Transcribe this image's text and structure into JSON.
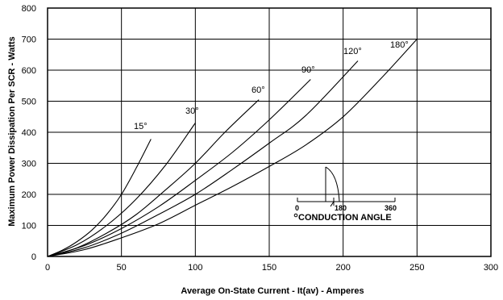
{
  "chart_data": {
    "type": "line",
    "title": "",
    "xlabel": "Average On-State Current - It(av) - Amperes",
    "ylabel": "Maximum Power Dissipation Per SCR - Watts",
    "xlim": [
      0,
      300
    ],
    "ylim": [
      0,
      800
    ],
    "x_ticks": [
      "0",
      "50",
      "100",
      "150",
      "200",
      "250",
      "300"
    ],
    "y_ticks": [
      "0",
      "100",
      "200",
      "300",
      "400",
      "500",
      "600",
      "700",
      "800"
    ],
    "grid": true,
    "series": [
      {
        "name": "15°",
        "x": [
          0,
          10,
          20,
          30,
          40,
          50,
          60,
          70
        ],
        "y": [
          0,
          20,
          48,
          85,
          135,
          200,
          285,
          378
        ]
      },
      {
        "name": "30°",
        "x": [
          0,
          20,
          40,
          60,
          80,
          100
        ],
        "y": [
          0,
          38,
          100,
          185,
          295,
          430
        ]
      },
      {
        "name": "60°",
        "x": [
          0,
          20,
          40,
          60,
          80,
          100,
          120,
          143
        ],
        "y": [
          0,
          28,
          75,
          135,
          215,
          300,
          400,
          505
        ]
      },
      {
        "name": "90°",
        "x": [
          0,
          25,
          50,
          75,
          100,
          125,
          150,
          178
        ],
        "y": [
          0,
          35,
          90,
          160,
          245,
          335,
          440,
          570
        ]
      },
      {
        "name": "120°",
        "x": [
          0,
          25,
          50,
          75,
          100,
          125,
          150,
          175,
          210
        ],
        "y": [
          0,
          28,
          75,
          135,
          200,
          280,
          365,
          455,
          630
        ]
      },
      {
        "name": "180°",
        "x": [
          0,
          25,
          50,
          75,
          100,
          125,
          150,
          175,
          200,
          225,
          250
        ],
        "y": [
          0,
          22,
          60,
          105,
          165,
          225,
          290,
          360,
          450,
          570,
          700
        ]
      }
    ],
    "annotations": {
      "curve_labels": [
        "15°",
        "30°",
        "60°",
        "90°",
        "120°",
        "180°"
      ],
      "inset": {
        "scale_labels": [
          "0",
          "180",
          "360"
        ],
        "title": "CONDUCTION ANGLE"
      }
    }
  }
}
